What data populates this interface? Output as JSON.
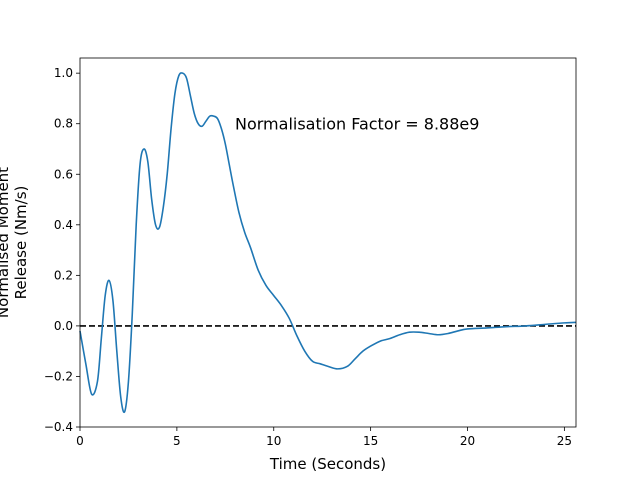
{
  "chart_data": {
    "type": "line",
    "title": "",
    "xlabel": "Time (Seconds)",
    "ylabel_lines": [
      "Normalised Moment",
      "Release (Nm/s)"
    ],
    "xlim": [
      0,
      25.6
    ],
    "ylim": [
      -0.4,
      1.06
    ],
    "xticks": [
      0,
      5,
      10,
      15,
      20,
      25
    ],
    "yticks": [
      -0.4,
      -0.2,
      0.0,
      0.2,
      0.4,
      0.6,
      0.8,
      1.0
    ],
    "xtick_labels": [
      "0",
      "5",
      "10",
      "15",
      "20",
      "25"
    ],
    "ytick_labels": [
      "−0.4",
      "−0.2",
      "0.0",
      "0.2",
      "0.4",
      "0.6",
      "0.8",
      "1.0"
    ],
    "grid": false,
    "annotation": {
      "text": "Normalisation Factor = 8.88e9",
      "x": 8.0,
      "y": 0.8
    },
    "reference_line": {
      "y": 0.0,
      "style": "dashed",
      "color": "#000000"
    },
    "series": [
      {
        "color": "#1f77b4",
        "x": [
          0.0,
          0.3,
          0.6,
          0.9,
          1.1,
          1.3,
          1.5,
          1.7,
          1.9,
          2.1,
          2.3,
          2.5,
          2.7,
          2.9,
          3.1,
          3.3,
          3.5,
          3.7,
          3.9,
          4.1,
          4.3,
          4.5,
          4.7,
          4.9,
          5.1,
          5.3,
          5.5,
          5.7,
          5.9,
          6.1,
          6.3,
          6.5,
          6.7,
          6.9,
          7.1,
          7.3,
          7.5,
          7.7,
          7.9,
          8.2,
          8.5,
          8.8,
          9.2,
          9.6,
          10.0,
          10.4,
          10.8,
          11.2,
          11.6,
          12.0,
          12.4,
          12.8,
          13.3,
          13.8,
          14.2,
          14.6,
          15.0,
          15.5,
          16.0,
          16.5,
          17.0,
          17.5,
          18.0,
          18.5,
          19.0,
          19.5,
          20.0,
          21.0,
          22.0,
          23.0,
          24.0,
          25.0,
          25.6
        ],
        "values": [
          -0.02,
          -0.15,
          -0.27,
          -0.22,
          -0.05,
          0.12,
          0.18,
          0.1,
          -0.1,
          -0.28,
          -0.34,
          -0.22,
          0.05,
          0.4,
          0.64,
          0.7,
          0.65,
          0.5,
          0.4,
          0.39,
          0.47,
          0.6,
          0.78,
          0.92,
          0.99,
          1.0,
          0.98,
          0.91,
          0.84,
          0.8,
          0.79,
          0.81,
          0.83,
          0.83,
          0.82,
          0.78,
          0.72,
          0.64,
          0.56,
          0.45,
          0.37,
          0.31,
          0.22,
          0.16,
          0.12,
          0.08,
          0.03,
          -0.04,
          -0.1,
          -0.14,
          -0.15,
          -0.16,
          -0.17,
          -0.16,
          -0.13,
          -0.1,
          -0.08,
          -0.06,
          -0.05,
          -0.035,
          -0.025,
          -0.025,
          -0.03,
          -0.035,
          -0.03,
          -0.02,
          -0.012,
          -0.008,
          -0.003,
          0.0,
          0.006,
          0.012,
          0.014
        ]
      }
    ]
  }
}
